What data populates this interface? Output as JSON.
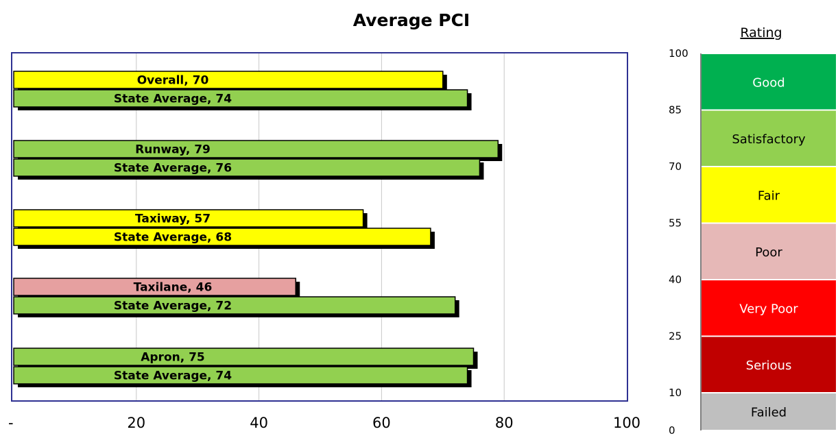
{
  "chart_data": {
    "type": "bar",
    "orientation": "horizontal",
    "title": "Average PCI",
    "xlim": [
      0,
      100
    ],
    "x_ticks": [
      "-",
      "20",
      "40",
      "60",
      "80",
      "100"
    ],
    "x_tick_values": [
      0,
      20,
      40,
      60,
      80,
      100
    ],
    "grid": "vertical",
    "groups": [
      {
        "bars": [
          {
            "label": "Overall, 70",
            "value": 70,
            "color": "#ffff00"
          },
          {
            "label": "State Average,  74",
            "value": 74,
            "color": "#92d050"
          }
        ]
      },
      {
        "bars": [
          {
            "label": "Runway, 79",
            "value": 79,
            "color": "#92d050"
          },
          {
            "label": "State Average, 76",
            "value": 76,
            "color": "#92d050"
          }
        ]
      },
      {
        "bars": [
          {
            "label": "Taxiway, 57",
            "value": 57,
            "color": "#ffff00"
          },
          {
            "label": "State Average, 68",
            "value": 68,
            "color": "#ffff00"
          }
        ]
      },
      {
        "bars": [
          {
            "label": "Taxilane, 46",
            "value": 46,
            "color": "#e6a0a0"
          },
          {
            "label": "State Average,  72",
            "value": 72,
            "color": "#92d050"
          }
        ]
      },
      {
        "bars": [
          {
            "label": "Apron, 75",
            "value": 75,
            "color": "#92d050"
          },
          {
            "label": "State Average,  74",
            "value": 74,
            "color": "#92d050"
          }
        ]
      }
    ],
    "rating_scale": {
      "title": "Rating",
      "range": [
        0,
        100
      ],
      "ticks": [
        0,
        10,
        25,
        40,
        55,
        70,
        85,
        100
      ],
      "bands": [
        {
          "label": "Good",
          "from": 85,
          "to": 100,
          "color": "#00b050",
          "text_color": "#ffffff"
        },
        {
          "label": "Satisfactory",
          "from": 70,
          "to": 85,
          "color": "#92d050",
          "text_color": "#000000"
        },
        {
          "label": "Fair",
          "from": 55,
          "to": 70,
          "color": "#ffff00",
          "text_color": "#000000"
        },
        {
          "label": "Poor",
          "from": 40,
          "to": 55,
          "color": "#e6b8b7",
          "text_color": "#000000"
        },
        {
          "label": "Very Poor",
          "from": 25,
          "to": 40,
          "color": "#ff0000",
          "text_color": "#ffffff"
        },
        {
          "label": "Serious",
          "from": 10,
          "to": 25,
          "color": "#c00000",
          "text_color": "#ffffff"
        },
        {
          "label": "Failed",
          "from": 0,
          "to": 10,
          "color": "#bfbfbf",
          "text_color": "#000000"
        }
      ]
    }
  }
}
